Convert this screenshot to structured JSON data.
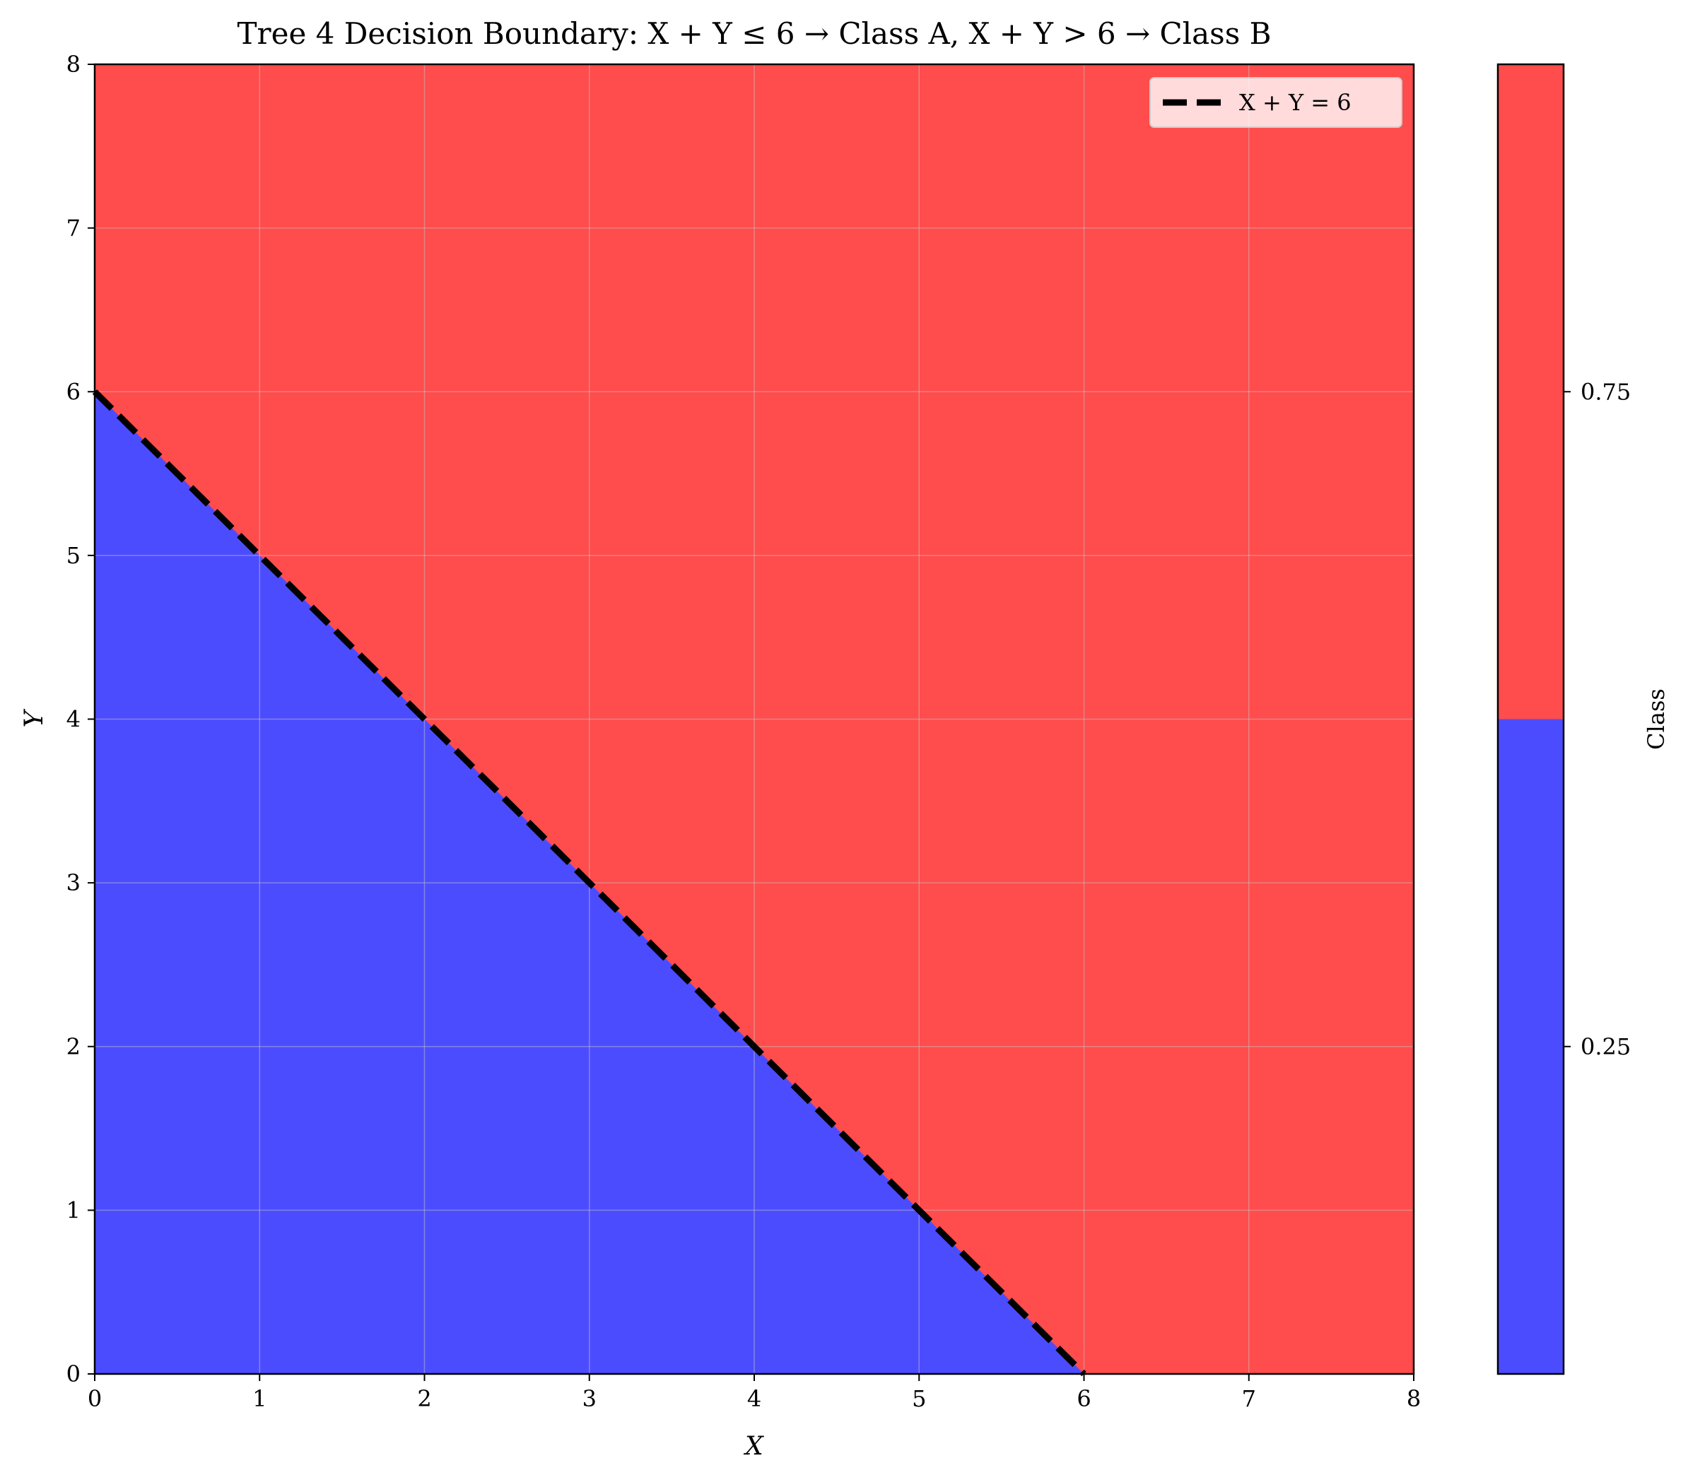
{
  "chart_data": {
    "type": "heatmap",
    "title": "Tree 4 Decision Boundary: X + Y ≤ 6 → Class A, X + Y > 6 → Class B",
    "xlabel": "X",
    "ylabel": "Y",
    "xlim": [
      0,
      8
    ],
    "ylim": [
      0,
      8
    ],
    "xticks": [
      0,
      1,
      2,
      3,
      4,
      5,
      6,
      7,
      8
    ],
    "yticks": [
      0,
      1,
      2,
      3,
      4,
      5,
      6,
      7,
      8
    ],
    "grid": true,
    "regions": [
      {
        "condition": "X + Y <= 6",
        "class_value": 0,
        "color": "#4c4cff"
      },
      {
        "condition": "X + Y > 6",
        "class_value": 1,
        "color": "#ff4c4c"
      }
    ],
    "boundary_line": {
      "label": "X + Y = 6",
      "points": [
        [
          0,
          6
        ],
        [
          6,
          0
        ]
      ],
      "style": "dashed",
      "color": "#000000"
    },
    "legend": {
      "position": "top-right",
      "entries": [
        "X + Y = 6"
      ]
    },
    "colorbar": {
      "label": "Class",
      "range": [
        0,
        1
      ],
      "ticks": [
        0.25,
        0.75
      ],
      "tick_labels": [
        "0.25",
        "0.75"
      ],
      "colors": [
        "#4c4cff",
        "#ff4c4c"
      ]
    }
  }
}
